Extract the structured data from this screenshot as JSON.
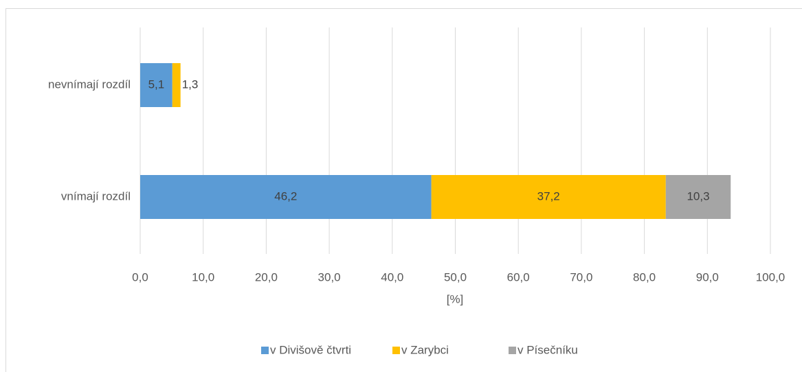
{
  "chart_data": {
    "type": "stacked-bar-horizontal",
    "categories": [
      "nevnímají rozdíl",
      "vnímají rozdíl"
    ],
    "series": [
      {
        "name": "v Divišově čtvrti",
        "color": "#5b9bd5",
        "values": [
          5.1,
          46.2
        ],
        "value_labels": [
          "5,1",
          "46,2"
        ]
      },
      {
        "name": "v Zarybci",
        "color": "#ffc000",
        "values": [
          1.3,
          37.2
        ],
        "value_labels": [
          "1,3",
          "37,2"
        ]
      },
      {
        "name": "v Písečníku",
        "color": "#a5a5a5",
        "values": [
          null,
          10.3
        ],
        "value_labels": [
          null,
          "10,3"
        ]
      }
    ],
    "xlabel": "[%]",
    "xlim": [
      0,
      100
    ],
    "xticks": [
      {
        "value": 0,
        "label": "0,0"
      },
      {
        "value": 10,
        "label": "10,0"
      },
      {
        "value": 20,
        "label": "20,0"
      },
      {
        "value": 30,
        "label": "30,0"
      },
      {
        "value": 40,
        "label": "40,0"
      },
      {
        "value": 50,
        "label": "50,0"
      },
      {
        "value": 60,
        "label": "60,0"
      },
      {
        "value": 70,
        "label": "70,0"
      },
      {
        "value": 80,
        "label": "80,0"
      },
      {
        "value": 90,
        "label": "90,0"
      },
      {
        "value": 100,
        "label": "100,0"
      }
    ],
    "grid": true,
    "legend": "bottom"
  }
}
